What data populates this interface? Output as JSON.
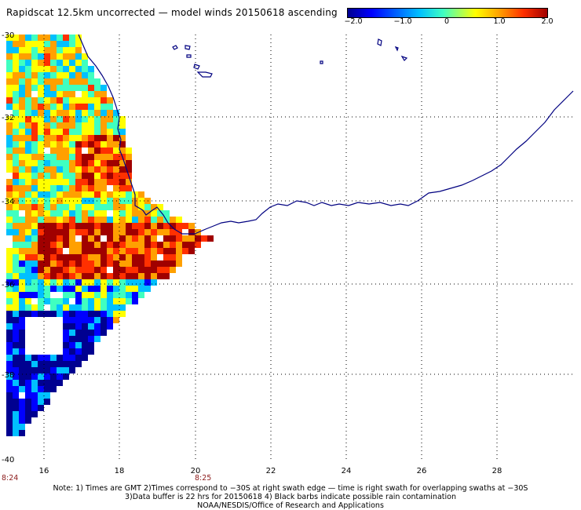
{
  "title": "Rapidscat 12.5km uncorrected — model winds 20150618 ascending",
  "colorbar": {
    "labels": [
      "−2.0",
      "−1.0",
      "0",
      "1.0",
      "2.0"
    ],
    "colors": [
      "#000090",
      "#0000ff",
      "#00c0ff",
      "#40ffc0",
      "#ffff00",
      "#ffa000",
      "#ff3000",
      "#a00000"
    ]
  },
  "map": {
    "lon_range": [
      15,
      30
    ],
    "lat_range": [
      -40,
      -30
    ],
    "lon_ticks": [
      "16",
      "18",
      "20",
      "22",
      "24",
      "26",
      "28"
    ],
    "lat_ticks": [
      "-30",
      "-32",
      "-34",
      "-36",
      "-38",
      "-40"
    ],
    "gridlines": "dotted",
    "coastline_color": "#000080"
  },
  "time_labels": [
    "8:24",
    "8:25"
  ],
  "notes": [
    "Note: 1) Times are GMT 2)Times correspond to −30S at right swath edge — time is right swath for overlapping swaths at −30S",
    "3)Data buffer is 22 hrs for 20150618 4) Black barbs indicate possible rain contamination",
    "NOAA/NESDIS/Office of Research and Applications"
  ]
}
